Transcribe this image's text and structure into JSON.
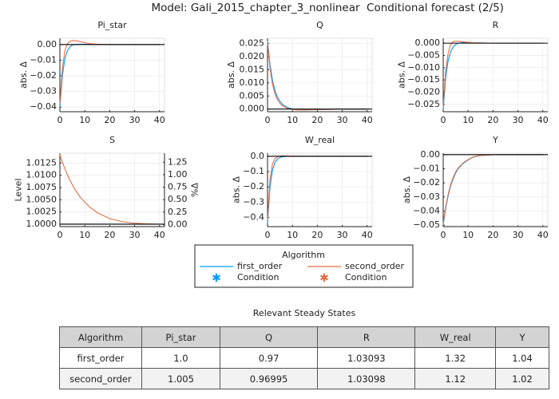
{
  "title": "Model: Gali_2015_chapter_3_nonlinear",
  "subtitle": "Conditional forecast  (2/5)",
  "chart_data": [
    {
      "type": "line",
      "title": "Pi_star",
      "ylabel": "abs. Δ",
      "x": [
        0,
        1,
        2,
        3,
        4,
        5,
        6,
        8,
        10,
        12,
        15,
        20,
        25,
        30,
        35,
        40
      ],
      "xlim": [
        0,
        42
      ],
      "xticks": [
        0,
        10,
        20,
        30,
        40
      ],
      "ylim": [
        -0.043,
        0.004
      ],
      "yticks": [
        {
          "value": -0.04,
          "label": "−0.04"
        },
        {
          "value": -0.03,
          "label": "−0.03"
        },
        {
          "value": -0.02,
          "label": "−0.02"
        },
        {
          "value": -0.01,
          "label": "−0.01"
        },
        {
          "value": 0,
          "label": "0.00"
        }
      ],
      "reference_line": 0,
      "grid": true,
      "series": [
        {
          "name": "first_order",
          "color": "#009af9",
          "values": [
            -0.04,
            -0.02,
            -0.009,
            -0.004,
            -0.0015,
            -0.0003,
            0,
            0.0002,
            0.0002,
            0.0001,
            0,
            0,
            0,
            0,
            0,
            0
          ]
        },
        {
          "name": "second_order",
          "color": "#e26f46",
          "values": [
            -0.038,
            -0.015,
            -0.004,
            0.0005,
            0.002,
            0.0025,
            0.0025,
            0.002,
            0.0012,
            0.0006,
            0.0002,
            0,
            0,
            0,
            0,
            0
          ]
        }
      ]
    },
    {
      "type": "line",
      "title": "Q",
      "ylabel": "abs. Δ",
      "x": [
        0,
        1,
        2,
        3,
        4,
        5,
        6,
        8,
        10,
        12,
        15,
        20,
        25,
        30,
        35,
        40
      ],
      "xlim": [
        0,
        42
      ],
      "xticks": [
        0,
        10,
        20,
        30,
        40
      ],
      "ylim": [
        -0.001,
        0.027
      ],
      "yticks": [
        {
          "value": 0,
          "label": "0.000"
        },
        {
          "value": 0.005,
          "label": "0.005"
        },
        {
          "value": 0.01,
          "label": "0.010"
        },
        {
          "value": 0.015,
          "label": "0.015"
        },
        {
          "value": 0.02,
          "label": "0.020"
        },
        {
          "value": 0.025,
          "label": "0.025"
        }
      ],
      "reference_line": 0,
      "grid": true,
      "series": [
        {
          "name": "first_order",
          "color": "#009af9",
          "values": [
            0.026,
            0.017,
            0.011,
            0.007,
            0.0045,
            0.003,
            0.0018,
            0.0006,
            0.0001,
            -0.0002,
            -0.0003,
            -0.0002,
            -0.0001,
            0,
            0,
            0
          ]
        },
        {
          "name": "second_order",
          "color": "#e26f46",
          "values": [
            0.0255,
            0.0155,
            0.0095,
            0.0058,
            0.0036,
            0.0022,
            0.0012,
            0.0003,
            -0.0001,
            -0.0003,
            -0.0003,
            -0.0002,
            -0.0001,
            0,
            0,
            0
          ]
        }
      ]
    },
    {
      "type": "line",
      "title": "R",
      "ylabel": "abs. Δ",
      "x": [
        0,
        1,
        2,
        3,
        4,
        5,
        6,
        8,
        10,
        12,
        15,
        20,
        25,
        30,
        35,
        40
      ],
      "xlim": [
        0,
        42
      ],
      "xticks": [
        0,
        10,
        20,
        30,
        40
      ],
      "ylim": [
        -0.028,
        0.002
      ],
      "yticks": [
        {
          "value": -0.025,
          "label": "−0.025"
        },
        {
          "value": -0.02,
          "label": "−0.020"
        },
        {
          "value": -0.015,
          "label": "−0.015"
        },
        {
          "value": -0.01,
          "label": "−0.010"
        },
        {
          "value": -0.005,
          "label": "−0.005"
        },
        {
          "value": 0,
          "label": "0.000"
        }
      ],
      "reference_line": 0,
      "grid": true,
      "series": [
        {
          "name": "first_order",
          "color": "#009af9",
          "values": [
            -0.027,
            -0.014,
            -0.007,
            -0.0035,
            -0.0015,
            -0.0005,
            0,
            0.0003,
            0.0003,
            0.0002,
            0.0001,
            0,
            0,
            0,
            0,
            0
          ]
        },
        {
          "name": "second_order",
          "color": "#e26f46",
          "values": [
            -0.026,
            -0.011,
            -0.004,
            -0.0005,
            0.0007,
            0.0008,
            0.0008,
            0.0006,
            0.0004,
            0.0002,
            0.0001,
            0,
            0,
            0,
            0,
            0
          ]
        }
      ]
    },
    {
      "type": "line",
      "title": "S",
      "ylabel": "Level",
      "y2label": "%Δ",
      "x": [
        0,
        1,
        2,
        3,
        4,
        5,
        6,
        8,
        10,
        12,
        15,
        20,
        25,
        30,
        35,
        40
      ],
      "xlim": [
        0,
        42
      ],
      "xticks": [
        0,
        10,
        20,
        30,
        40
      ],
      "ylim": [
        0.9995,
        1.0145
      ],
      "yticks": [
        {
          "value": 1.0,
          "label": "1.0000"
        },
        {
          "value": 1.0025,
          "label": "1.0025"
        },
        {
          "value": 1.005,
          "label": "1.0050"
        },
        {
          "value": 1.0075,
          "label": "1.0075"
        },
        {
          "value": 1.01,
          "label": "1.0100"
        },
        {
          "value": 1.0125,
          "label": "1.0125"
        }
      ],
      "y2lim": [
        -0.04,
        1.43
      ],
      "y2ticks": [
        {
          "value": 0,
          "label": "0.00"
        },
        {
          "value": 0.25,
          "label": "0.25"
        },
        {
          "value": 0.5,
          "label": "0.50"
        },
        {
          "value": 0.75,
          "label": "0.75"
        },
        {
          "value": 1.0,
          "label": "1.00"
        },
        {
          "value": 1.25,
          "label": "1.25"
        }
      ],
      "reference_line": 1.0,
      "grid": true,
      "series": [
        {
          "name": "first_order",
          "color": "#009af9",
          "values": [
            1.0,
            1.0,
            1.0,
            1.0,
            1.0,
            1.0,
            1.0,
            1.0,
            1.0,
            1.0,
            1.0,
            1.0,
            1.0,
            1.0,
            1.0,
            1.0
          ]
        },
        {
          "name": "second_order",
          "color": "#e26f46",
          "axis": "y2",
          "values": [
            1.4,
            1.25,
            1.12,
            1.0,
            0.89,
            0.8,
            0.71,
            0.56,
            0.45,
            0.35,
            0.24,
            0.12,
            0.06,
            0.03,
            0.015,
            0.008
          ]
        }
      ]
    },
    {
      "type": "line",
      "title": "W_real",
      "ylabel": "abs. Δ",
      "x": [
        0,
        1,
        2,
        3,
        4,
        5,
        6,
        8,
        10,
        12,
        15,
        20,
        25,
        30,
        35,
        40
      ],
      "xlim": [
        0,
        42
      ],
      "xticks": [
        0,
        10,
        20,
        30,
        40
      ],
      "ylim": [
        -0.46,
        0.02
      ],
      "yticks": [
        {
          "value": -0.4,
          "label": "−0.4"
        },
        {
          "value": -0.3,
          "label": "−0.3"
        },
        {
          "value": -0.2,
          "label": "−0.2"
        },
        {
          "value": -0.1,
          "label": "−0.1"
        },
        {
          "value": 0,
          "label": "0.0"
        }
      ],
      "reference_line": 0,
      "grid": true,
      "series": [
        {
          "name": "first_order",
          "color": "#009af9",
          "values": [
            -0.44,
            -0.2,
            -0.09,
            -0.04,
            -0.018,
            -0.008,
            -0.003,
            0,
            0.001,
            0.001,
            0,
            0,
            0,
            0,
            0,
            0
          ]
        },
        {
          "name": "second_order",
          "color": "#e26f46",
          "values": [
            -0.42,
            -0.15,
            -0.05,
            -0.015,
            -0.003,
            0.002,
            0.003,
            0.002,
            0.001,
            0.0005,
            0,
            0,
            0,
            0,
            0,
            0
          ]
        }
      ]
    },
    {
      "type": "line",
      "title": "Y",
      "ylabel": "abs. Δ",
      "x": [
        0,
        1,
        2,
        3,
        4,
        5,
        6,
        8,
        10,
        12,
        15,
        20,
        25,
        30,
        35,
        40
      ],
      "xlim": [
        0,
        42
      ],
      "xticks": [
        0,
        10,
        20,
        30,
        40
      ],
      "ylim": [
        -0.051,
        0.001
      ],
      "yticks": [
        {
          "value": -0.05,
          "label": "−0.05"
        },
        {
          "value": -0.04,
          "label": "−0.04"
        },
        {
          "value": -0.03,
          "label": "−0.03"
        },
        {
          "value": -0.02,
          "label": "−0.02"
        },
        {
          "value": -0.01,
          "label": "−0.01"
        },
        {
          "value": 0,
          "label": "0.00"
        }
      ],
      "reference_line": 0,
      "grid": true,
      "series": [
        {
          "name": "first_order",
          "color": "#009af9",
          "values": [
            -0.05,
            -0.038,
            -0.029,
            -0.022,
            -0.017,
            -0.013,
            -0.01,
            -0.0062,
            -0.0038,
            -0.0018,
            -0.0006,
            -0.0001,
            0,
            0,
            0,
            0
          ]
        },
        {
          "name": "second_order",
          "color": "#e26f46",
          "values": [
            -0.049,
            -0.037,
            -0.028,
            -0.021,
            -0.016,
            -0.0123,
            -0.0095,
            -0.0058,
            -0.0035,
            -0.0016,
            -0.0005,
            -0.0001,
            0,
            0,
            0,
            0
          ]
        }
      ]
    }
  ],
  "legend": {
    "title": "Algorithm",
    "condition": "Condition"
  },
  "table": {
    "title": "Relevant Steady States",
    "header": [
      "Algorithm",
      "Pi_star",
      "Q",
      "R",
      "W_real",
      "Y"
    ],
    "rows": [
      [
        "first_order",
        "1.0",
        "0.97",
        "1.03093",
        "1.32",
        "1.04"
      ],
      [
        "second_order",
        "1.005",
        "0.96995",
        "1.03098",
        "1.12",
        "1.02"
      ]
    ]
  }
}
